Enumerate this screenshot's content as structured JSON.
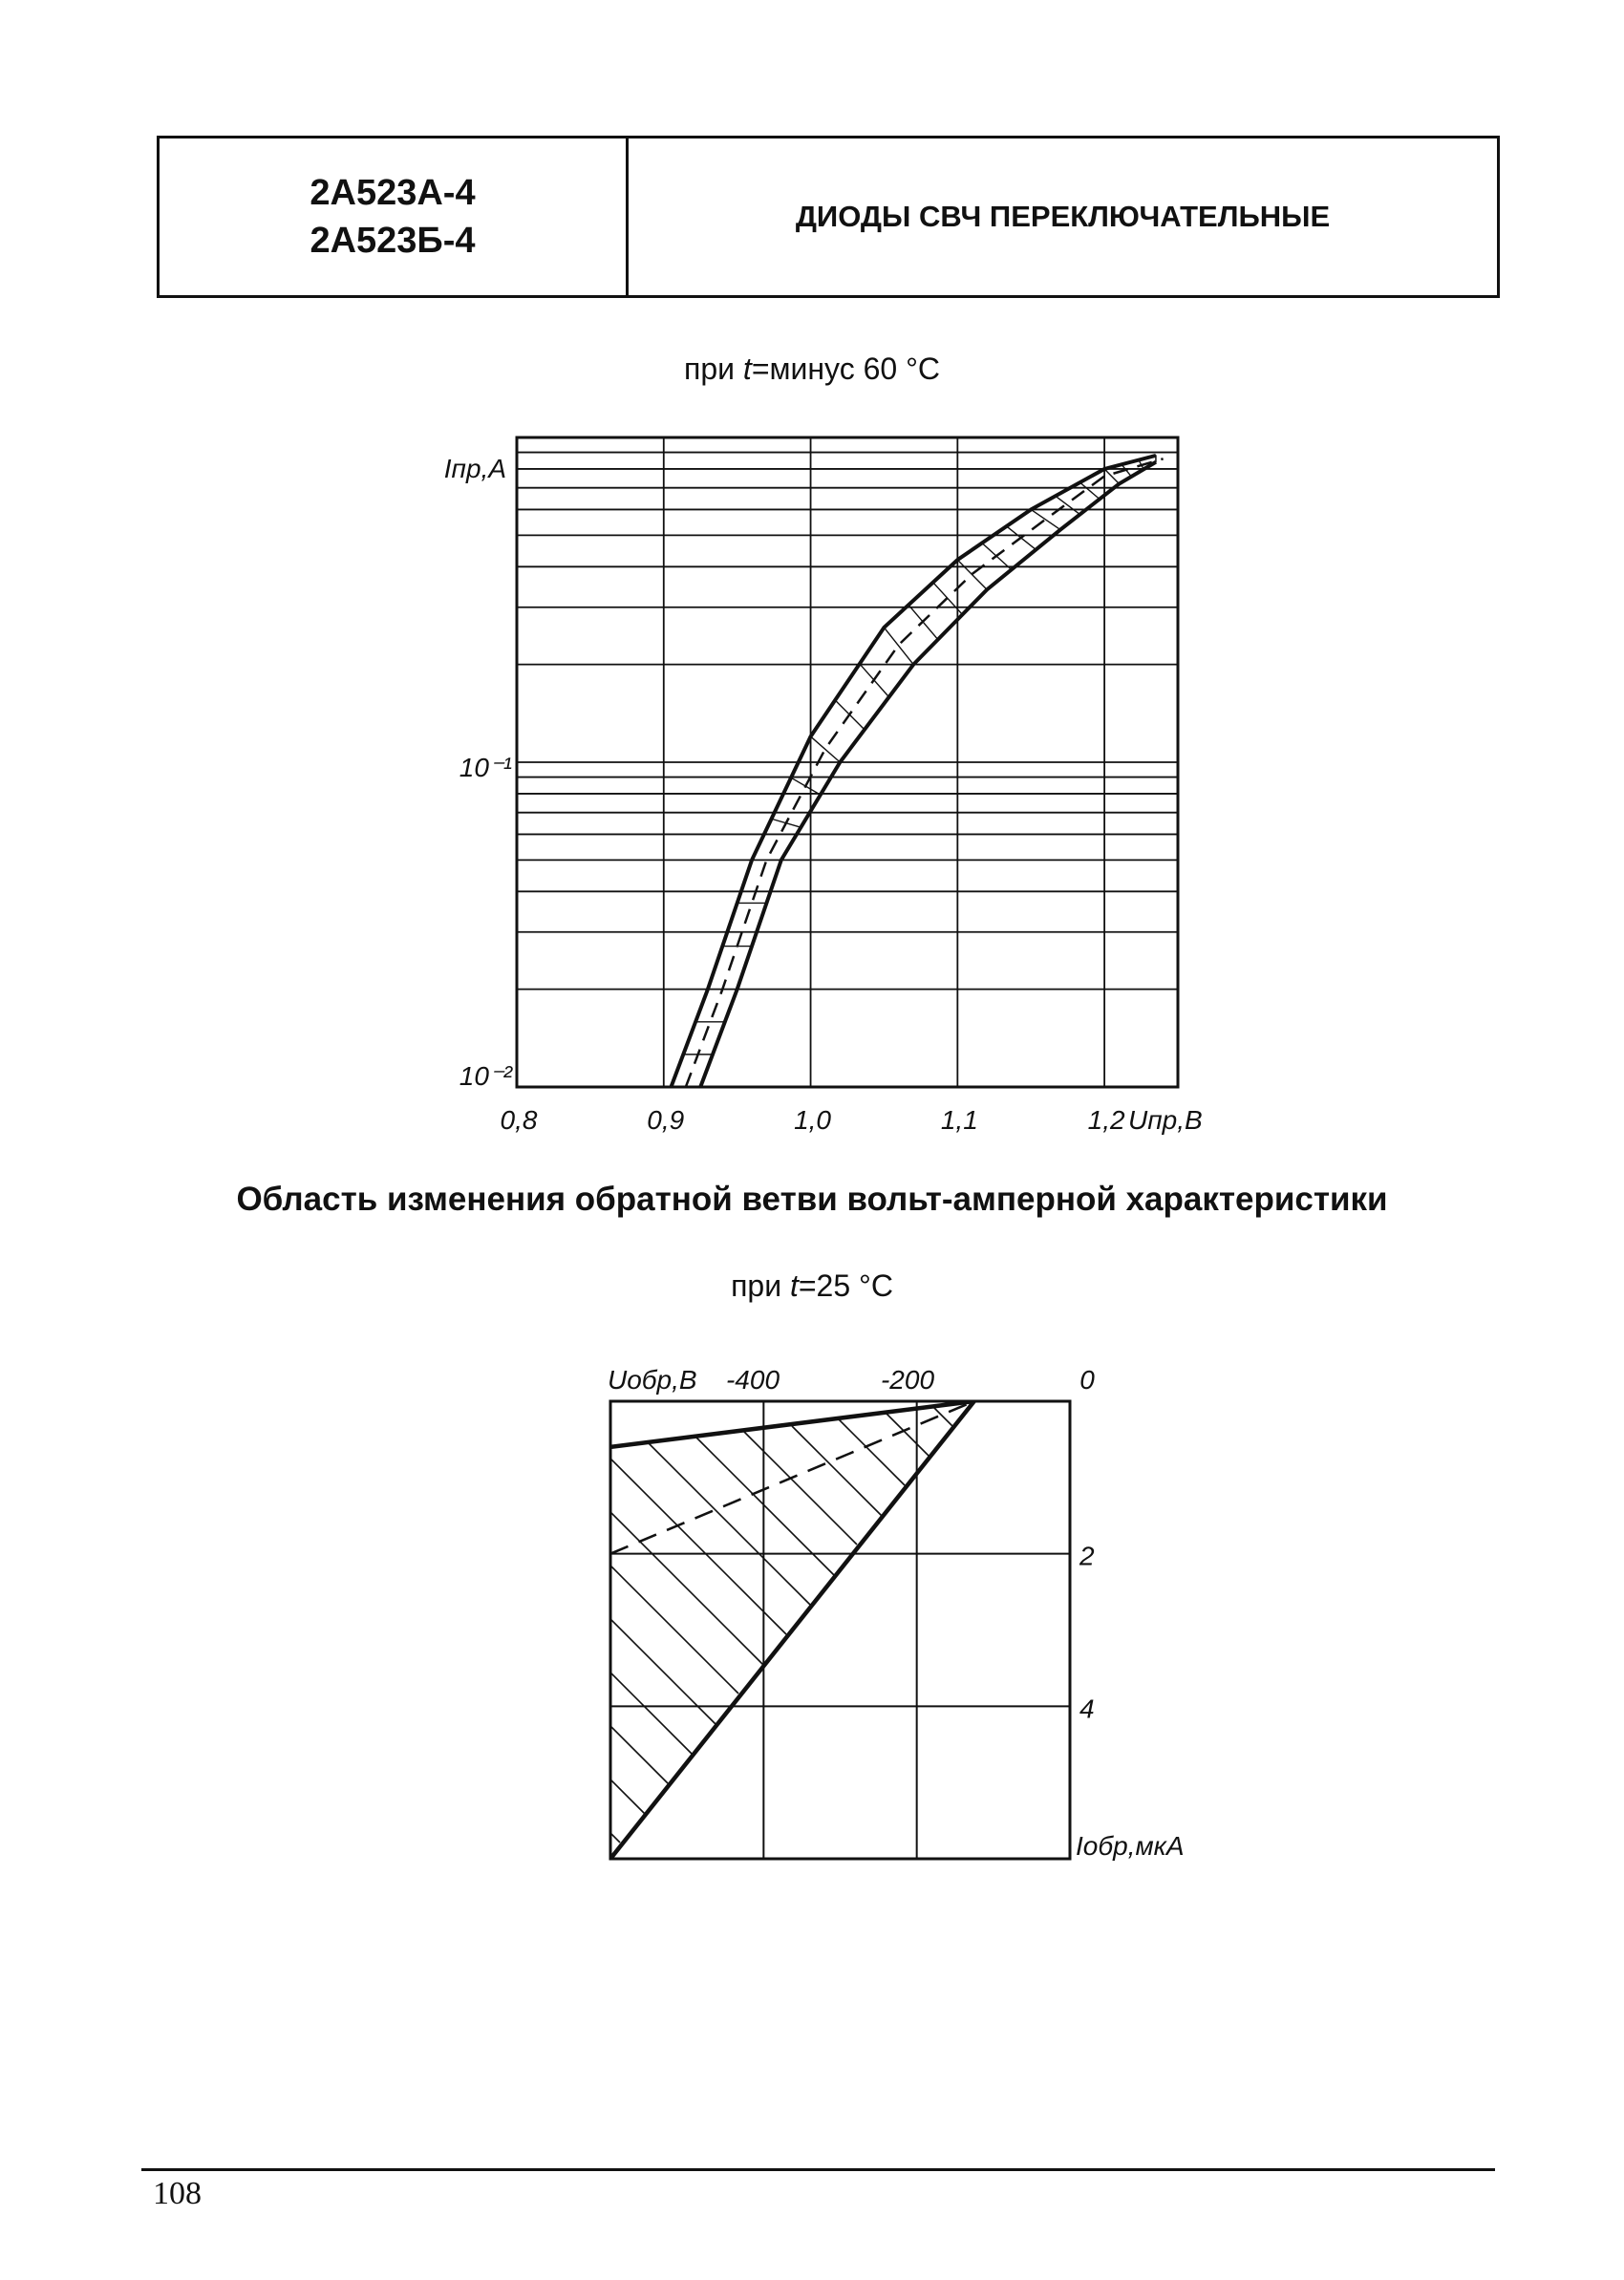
{
  "header": {
    "models": [
      "2А523А-4",
      "2А523Б-4"
    ],
    "title": "ДИОДЫ СВЧ ПЕРЕКЛЮЧАТЕЛЬНЫЕ"
  },
  "captions": {
    "forward_prefix": "при ",
    "forward_var": "t",
    "forward_suffix": "=минус 60 °С",
    "reverse_prefix": "при ",
    "reverse_var": "t",
    "reverse_suffix": "=25 °С"
  },
  "section_heading": "Область изменения обратной ветви вольт-амперной характеристики",
  "page_number": "108",
  "chart_data": [
    {
      "type": "area",
      "ylabel": "Iпр,А",
      "xlabel": "Uпр,В",
      "x_ticks": [
        "0,8",
        "0,9",
        "1,0",
        "1,1",
        "1,2"
      ],
      "y_ticks": [
        "10⁻¹",
        "10⁻²"
      ],
      "xlim": [
        0.8,
        1.25
      ],
      "ylim": [
        0.01,
        1.0
      ],
      "y_scale": "log",
      "grid": true,
      "series": [
        {
          "role": "upper",
          "x": [
            0.905,
            0.93,
            0.96,
            1.0,
            1.05,
            1.1,
            1.15,
            1.2,
            1.235
          ],
          "y": [
            0.01,
            0.02,
            0.05,
            0.12,
            0.26,
            0.42,
            0.6,
            0.8,
            0.88
          ]
        },
        {
          "role": "median",
          "x": [
            0.915,
            0.94,
            0.97,
            1.01,
            1.06,
            1.11,
            1.16,
            1.2,
            1.24
          ],
          "y": [
            0.01,
            0.02,
            0.05,
            0.11,
            0.23,
            0.38,
            0.56,
            0.76,
            0.86
          ]
        },
        {
          "role": "lower",
          "x": [
            0.925,
            0.95,
            0.98,
            1.02,
            1.07,
            1.12,
            1.17,
            1.21,
            1.235
          ],
          "y": [
            0.01,
            0.02,
            0.05,
            0.1,
            0.2,
            0.34,
            0.52,
            0.72,
            0.84
          ]
        }
      ]
    },
    {
      "type": "area",
      "xlabel": "Uобр,В",
      "ylabel": "Iобр,мкА",
      "x_ticks": [
        "-400",
        "-200",
        "0"
      ],
      "y_ticks": [
        "2",
        "4"
      ],
      "xlim": [
        -600,
        0
      ],
      "ylim": [
        0,
        6
      ],
      "grid": true,
      "series": [
        {
          "role": "upper",
          "x": [
            -600,
            -125
          ],
          "y": [
            0.6,
            0
          ]
        },
        {
          "role": "median",
          "x": [
            -600,
            -125
          ],
          "y": [
            2.0,
            0
          ]
        },
        {
          "role": "lower",
          "x": [
            -600,
            -125
          ],
          "y": [
            6.0,
            0
          ]
        }
      ]
    }
  ]
}
